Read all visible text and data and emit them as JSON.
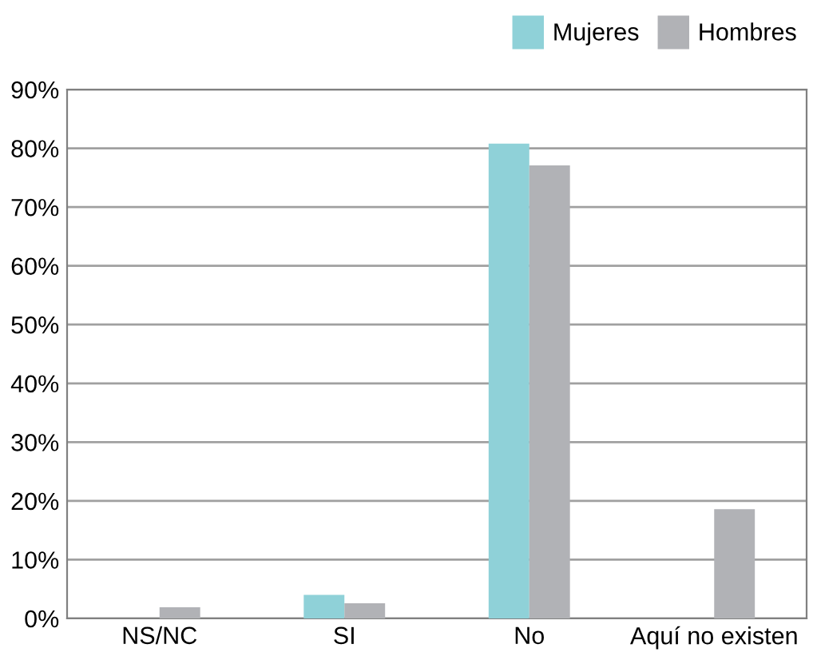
{
  "chart_data": {
    "type": "bar",
    "categories": [
      "NS/NC",
      "SI",
      "No",
      "Aquí no existen"
    ],
    "series": [
      {
        "name": "Mujeres",
        "color": "#8fd1d8",
        "values": [
          0,
          4,
          80.8,
          0
        ]
      },
      {
        "name": "Hombres",
        "color": "#b1b2b6",
        "values": [
          1.9,
          2.6,
          77.1,
          18.6
        ]
      }
    ],
    "ylim": [
      0,
      90
    ],
    "yticks": [
      {
        "value": 0,
        "label": "0%"
      },
      {
        "value": 10,
        "label": "10%"
      },
      {
        "value": 20,
        "label": "20%"
      },
      {
        "value": 30,
        "label": "30%"
      },
      {
        "value": 40,
        "label": "40%"
      },
      {
        "value": 50,
        "label": "50%"
      },
      {
        "value": 60,
        "label": "60%"
      },
      {
        "value": 70,
        "label": "70%"
      },
      {
        "value": 80,
        "label": "80%"
      },
      {
        "value": 90,
        "label": "90%"
      }
    ],
    "grid": "y",
    "legend": "top right"
  }
}
